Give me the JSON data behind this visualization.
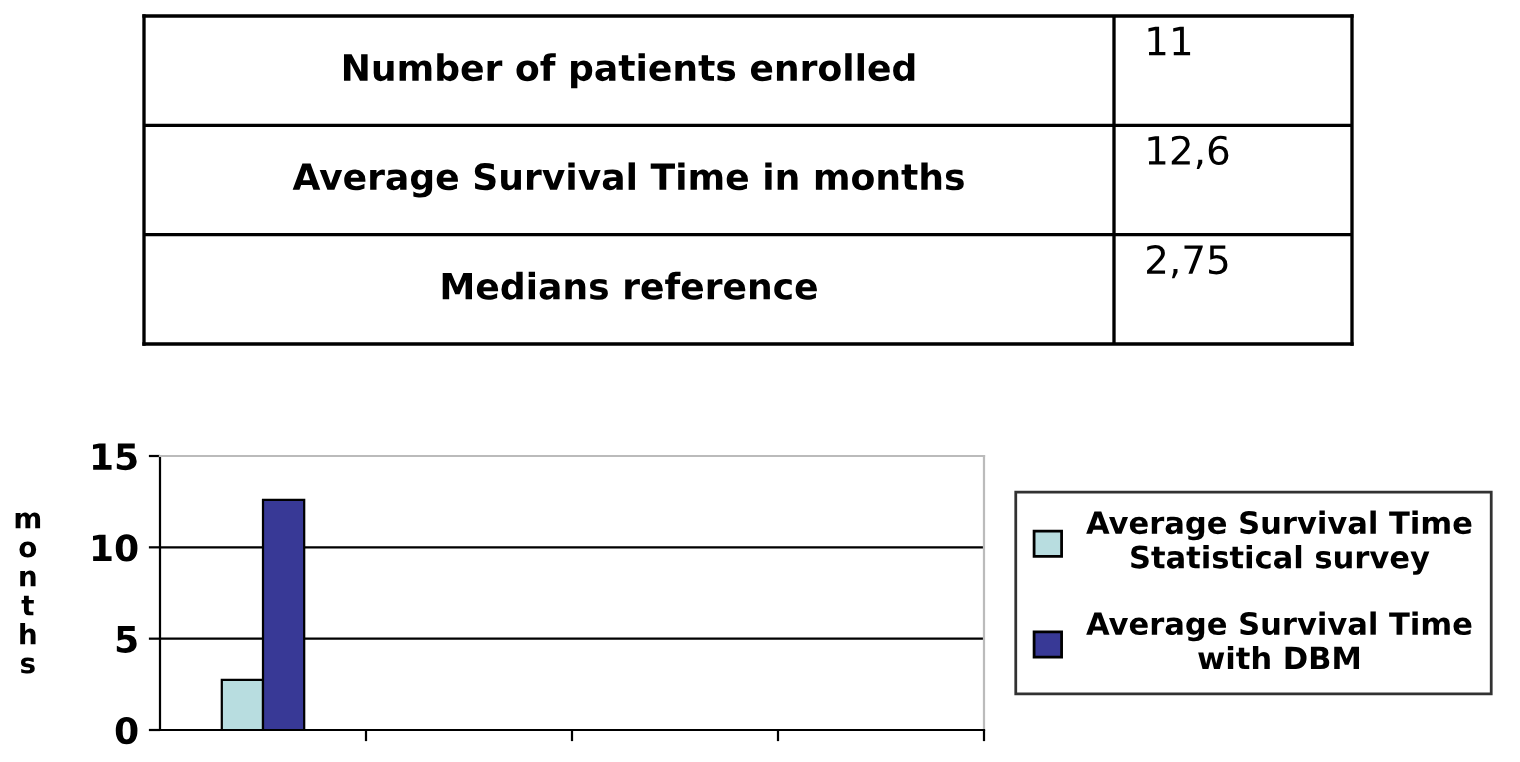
{
  "chart_data": [
    {
      "type": "other",
      "annotations": [
        "Number of patients enrolled",
        "11",
        "Average Survival Time in months",
        "12,6",
        "Medians reference",
        "2,75"
      ]
    },
    {
      "type": "bar",
      "ylabel": "months",
      "categories": [
        null,
        null,
        null,
        null
      ],
      "series": [
        {
          "name": "Average Survival Time Statistical survey",
          "color": "#b8dde0",
          "values": [
            2.75,
            null,
            null,
            null
          ]
        },
        {
          "name": "Average Survival Time with DBM",
          "color": "#383996",
          "values": [
            12.6,
            null,
            null,
            null
          ]
        }
      ],
      "ylim": [
        0,
        15
      ],
      "yticks": [
        0,
        5,
        10,
        15
      ],
      "grid": "y",
      "legend": "right"
    }
  ]
}
